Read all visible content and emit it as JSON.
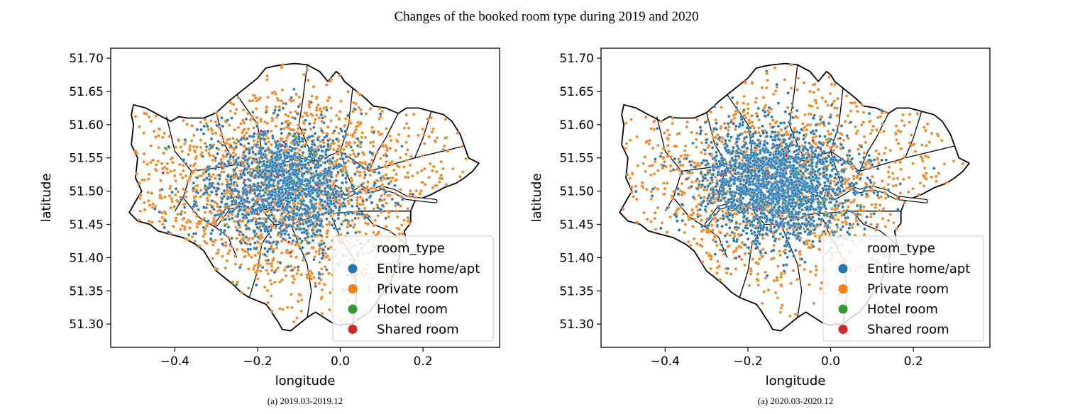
{
  "figure": {
    "suptitle": "Changes of the booked room type during 2019 and 2020"
  },
  "colors": {
    "Entire home/apt": "#1f77b4",
    "Private room": "#ff7f0e",
    "Hotel room": "#2ca02c",
    "Shared room": "#d62728"
  },
  "chart_data": [
    {
      "type": "scatter",
      "caption": "(a) 2019.03-2019.12",
      "xlabel": "longitude",
      "ylabel": "latitude",
      "xlim": [
        -0.555,
        0.385
      ],
      "ylim": [
        51.265,
        51.715
      ],
      "xticks": [
        -0.4,
        -0.2,
        0.0,
        0.2
      ],
      "xtick_labels": [
        "−0.4",
        "−0.2",
        "0.0",
        "0.2"
      ],
      "yticks": [
        51.3,
        51.35,
        51.4,
        51.45,
        51.5,
        51.55,
        51.6,
        51.65,
        51.7
      ],
      "ytick_labels": [
        "51.30",
        "51.35",
        "51.40",
        "51.45",
        "51.50",
        "51.55",
        "51.60",
        "51.65",
        "51.70"
      ],
      "legend": {
        "title": "room_type",
        "entries": [
          "Entire home/apt",
          "Private room",
          "Hotel room",
          "Shared room"
        ],
        "location": "lower-right"
      },
      "center": [
        -0.13,
        51.505
      ],
      "series_counts": {
        "Entire home/apt": 1500,
        "Private room": 1700,
        "Hotel room": 20,
        "Shared room": 12
      }
    },
    {
      "type": "scatter",
      "caption": "(a) 2020.03-2020.12",
      "xlabel": "longitude",
      "ylabel": "latitude",
      "xlim": [
        -0.555,
        0.385
      ],
      "ylim": [
        51.265,
        51.715
      ],
      "xticks": [
        -0.4,
        -0.2,
        0.0,
        0.2
      ],
      "xtick_labels": [
        "−0.4",
        "−0.2",
        "0.0",
        "0.2"
      ],
      "yticks": [
        51.3,
        51.35,
        51.4,
        51.45,
        51.5,
        51.55,
        51.6,
        51.65,
        51.7
      ],
      "ytick_labels": [
        "51.30",
        "51.35",
        "51.40",
        "51.45",
        "51.50",
        "51.55",
        "51.60",
        "51.65",
        "51.70"
      ],
      "legend": {
        "title": "room_type",
        "entries": [
          "Entire home/apt",
          "Private room",
          "Hotel room",
          "Shared room"
        ],
        "location": "lower-right"
      },
      "center": [
        -0.13,
        51.51
      ],
      "series_counts": {
        "Entire home/apt": 1900,
        "Private room": 1300,
        "Hotel room": 12,
        "Shared room": 10
      }
    }
  ]
}
